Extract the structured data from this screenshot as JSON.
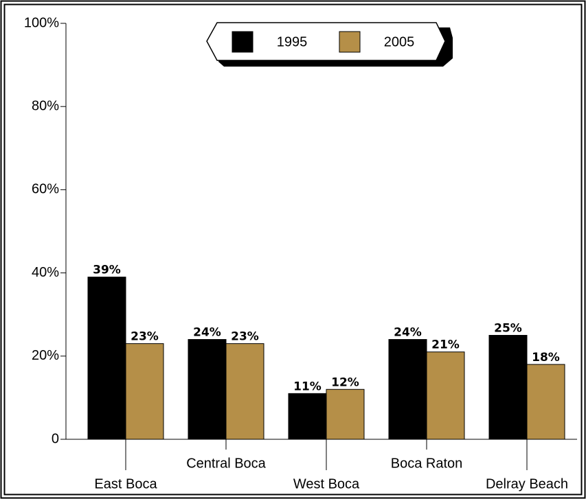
{
  "chart_data": {
    "type": "bar",
    "categories": [
      "East Boca",
      "Central Boca",
      "West Boca",
      "Boca Raton",
      "Delray Beach"
    ],
    "series": [
      {
        "name": "1995",
        "color": "#000000",
        "values": [
          39,
          24,
          11,
          24,
          25
        ],
        "value_labels": [
          "39%",
          "24%",
          "11%",
          "24%",
          "25%"
        ]
      },
      {
        "name": "2005",
        "color": "#b58f48",
        "values": [
          23,
          23,
          12,
          21,
          18
        ],
        "value_labels": [
          "23%",
          "23%",
          "12%",
          "21%",
          "18%"
        ]
      }
    ],
    "ylim": [
      0,
      100
    ],
    "yticks": [
      0,
      {
        "value": 20,
        "label": "20%"
      },
      {
        "value": 40,
        "label": "40%"
      },
      {
        "value": 60,
        "label": "60%"
      },
      {
        "value": 80,
        "label": "80%"
      },
      {
        "value": 100,
        "label": "100%"
      }
    ]
  }
}
